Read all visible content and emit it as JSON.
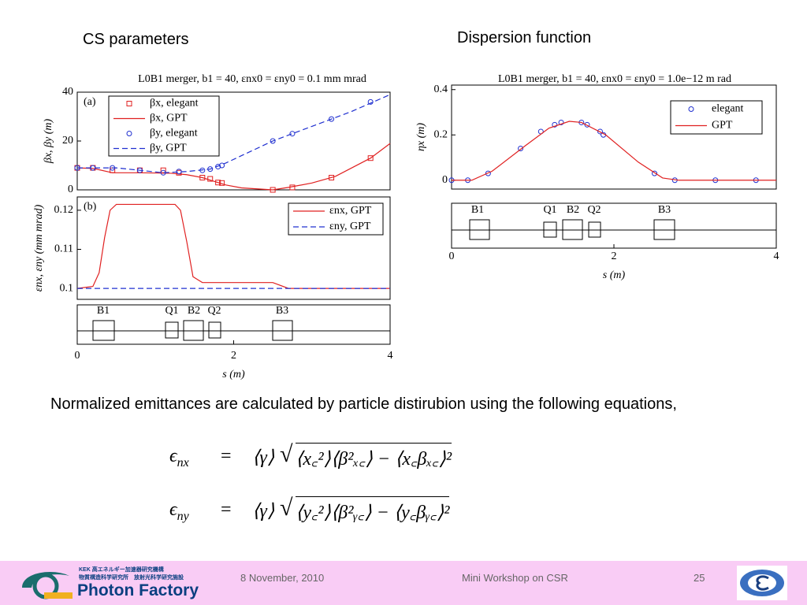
{
  "headings": {
    "left": "CS parameters",
    "right": "Dispersion function"
  },
  "chart_data": [
    {
      "type": "line",
      "title": "L0B1 merger, b1 = 40, εnx0 = εny0 = 0.1 mm mrad",
      "panel_label": "(a)",
      "y_label": "βx, βy (m)",
      "xlim": [
        0,
        4
      ],
      "ylim": [
        0,
        40
      ],
      "yticks": [
        0,
        20,
        40
      ],
      "series": [
        {
          "name": "βx, elegant",
          "color": "#e02020",
          "marker": "square",
          "x": [
            0,
            0.2,
            0.45,
            0.8,
            1.1,
            1.3,
            1.6,
            1.7,
            1.8,
            1.85,
            2.5,
            2.75,
            3.25,
            3.75
          ],
          "values": [
            9,
            9,
            8,
            8,
            8,
            7,
            5,
            4.5,
            3,
            2.8,
            0,
            1,
            5,
            13
          ]
        },
        {
          "name": "βx, GPT",
          "color": "#e02020",
          "marker": "none",
          "x": [
            0,
            0.2,
            0.45,
            0.8,
            1.2,
            1.4,
            1.6,
            1.75,
            1.9,
            2.1,
            2.5,
            2.7,
            3.0,
            3.3,
            3.75,
            4
          ],
          "values": [
            9,
            8.8,
            7,
            7,
            6.8,
            6.2,
            5,
            3.5,
            2,
            0.8,
            0,
            1,
            2.8,
            5.5,
            13,
            19
          ]
        },
        {
          "name": "βy, elegant",
          "color": "#2030d0",
          "marker": "circle",
          "x": [
            0,
            0.2,
            0.45,
            0.8,
            1.1,
            1.3,
            1.6,
            1.7,
            1.8,
            1.85,
            2.5,
            2.75,
            3.25,
            3.75
          ],
          "values": [
            9,
            9,
            9,
            8,
            7,
            7.5,
            8,
            8.5,
            9.5,
            10,
            20,
            23,
            29,
            36
          ]
        },
        {
          "name": "βy, GPT",
          "color": "#2030d0",
          "marker": "none",
          "dash": true,
          "x": [
            0,
            0.5,
            0.8,
            1.1,
            1.4,
            1.7,
            1.9,
            2.2,
            2.5,
            3.0,
            3.5,
            4
          ],
          "values": [
            9,
            9,
            8,
            7,
            7.5,
            8.5,
            11,
            15.5,
            20,
            26,
            32,
            39
          ]
        }
      ]
    },
    {
      "type": "line",
      "panel_label": "(b)",
      "y_label": "εnx, εny (mm mrad)",
      "x_label": "s (m)",
      "xlim": [
        0,
        4
      ],
      "xticks": [
        0,
        2,
        4
      ],
      "ylim": [
        0.0972,
        0.1234
      ],
      "yticks": [
        0.1,
        0.11,
        0.12
      ],
      "series": [
        {
          "name": "εnx, GPT",
          "color": "#e02020",
          "marker": "none",
          "x": [
            0,
            0.2,
            0.28,
            0.35,
            0.42,
            0.5,
            1.25,
            1.32,
            1.4,
            1.48,
            1.6,
            2.5,
            2.7,
            4
          ],
          "values": [
            0.1,
            0.1005,
            0.104,
            0.113,
            0.12,
            0.1215,
            0.1215,
            0.12,
            0.112,
            0.103,
            0.1015,
            0.1015,
            0.1,
            0.1
          ]
        },
        {
          "name": "εny, GPT",
          "color": "#2030d0",
          "marker": "none",
          "dash": true,
          "x": [
            0,
            4
          ],
          "values": [
            0.1,
            0.1
          ]
        }
      ]
    },
    {
      "type": "line",
      "title": "L0B1 merger, b1 = 40, εnx0 = εny0 = 1.0e−12 m rad",
      "y_label": "ηx (m)",
      "x_label": "s (m)",
      "xlim": [
        0,
        4
      ],
      "xticks": [
        0,
        2,
        4
      ],
      "ylim": [
        -0.039,
        0.42
      ],
      "yticks": [
        0,
        0.2,
        0.4
      ],
      "series": [
        {
          "name": "elegant",
          "color": "#2030d0",
          "marker": "circle",
          "x": [
            0,
            0.2,
            0.45,
            0.85,
            1.1,
            1.27,
            1.35,
            1.6,
            1.67,
            1.83,
            1.87,
            2.5,
            2.75,
            3.25,
            3.75
          ],
          "values": [
            0,
            0,
            0.03,
            0.14,
            0.215,
            0.245,
            0.255,
            0.255,
            0.245,
            0.215,
            0.2,
            0.03,
            0,
            0,
            0
          ]
        },
        {
          "name": "GPT",
          "color": "#e02020",
          "marker": "none",
          "x": [
            0,
            0.25,
            0.5,
            0.9,
            1.2,
            1.45,
            1.6,
            1.9,
            2.3,
            2.6,
            2.8,
            4
          ],
          "values": [
            0,
            0,
            0.04,
            0.15,
            0.23,
            0.26,
            0.255,
            0.2,
            0.08,
            0.01,
            0,
            0
          ]
        }
      ]
    }
  ],
  "lattice_left": [
    "B1",
    "Q1",
    "B2",
    "Q2",
    "B3"
  ],
  "lattice_right": [
    "B1",
    "Q1",
    "B2",
    "Q2",
    "B3"
  ],
  "paragraph": "Normalized emittances are calculated by particle distirubion using the following equations,",
  "equations": [
    {
      "lhs": "ϵ",
      "sub": "nx",
      "eq": "=",
      "rhs": "⟨γ⟩",
      "radicand": "⟨x꜀²⟩⟨β²ₓ꜀⟩ − ⟨x꜀βₓ꜀⟩²"
    },
    {
      "lhs": "ϵ",
      "sub": "ny",
      "eq": "=",
      "rhs": "⟨γ⟩",
      "radicand": "⟨y꜀²⟩⟨β²ᵧ꜀⟩ − ⟨y꜀βᵧ꜀⟩²"
    }
  ],
  "footer": {
    "org_line1": "KEK 高エネルギー加速器研究機構",
    "org_line2": "物質構造科学研究所　放射光科学研究施設",
    "logo_text": "Photon Factory",
    "date": "8 November, 2010",
    "event": "Mini Workshop on CSR",
    "page": "25"
  }
}
